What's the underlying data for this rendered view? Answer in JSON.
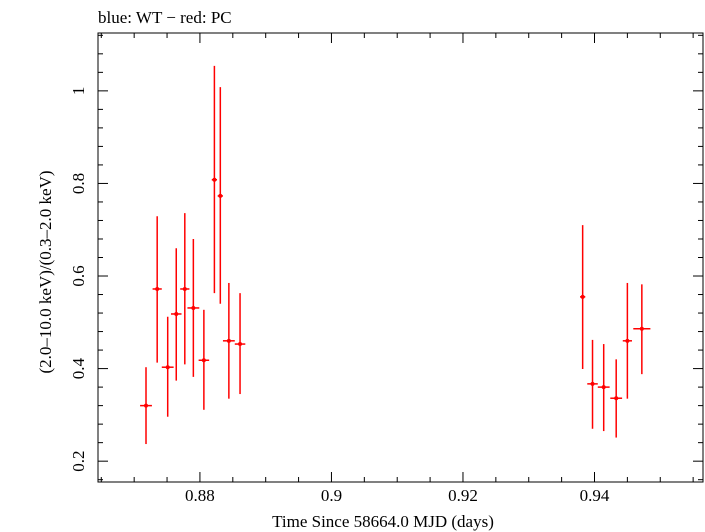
{
  "chart_data": {
    "type": "scatter",
    "title": "blue: WT − red: PC",
    "xlabel": "Time Since 58664.0 MJD (days)",
    "ylabel": "(2.0–10.0 keV)/(0.3–2.0 keV)",
    "xlim": [
      0.8645,
      0.9565
    ],
    "ylim": [
      0.155,
      1.125
    ],
    "x_ticks": [
      {
        "value": 0.88,
        "label": "0.88"
      },
      {
        "value": 0.9,
        "label": "0.9"
      },
      {
        "value": 0.92,
        "label": "0.92"
      },
      {
        "value": 0.94,
        "label": "0.94"
      }
    ],
    "y_ticks": [
      {
        "value": 0.2,
        "label": "0.2"
      },
      {
        "value": 0.4,
        "label": "0.4"
      },
      {
        "value": 0.6,
        "label": "0.6"
      },
      {
        "value": 0.8,
        "label": "0.8"
      },
      {
        "value": 1.0,
        "label": "1"
      }
    ],
    "grid": false,
    "series": [
      {
        "color": "#ff0000",
        "points": [
          {
            "x": 0.8718,
            "xerr": 0.0009,
            "y": 0.32,
            "ylo": 0.237,
            "yhi": 0.403
          },
          {
            "x": 0.8735,
            "xerr": 0.0007,
            "y": 0.572,
            "ylo": 0.413,
            "yhi": 0.729
          },
          {
            "x": 0.8751,
            "xerr": 0.0009,
            "y": 0.403,
            "ylo": 0.296,
            "yhi": 0.512
          },
          {
            "x": 0.8764,
            "xerr": 0.0008,
            "y": 0.518,
            "ylo": 0.374,
            "yhi": 0.66
          },
          {
            "x": 0.8777,
            "xerr": 0.0007,
            "y": 0.572,
            "ylo": 0.409,
            "yhi": 0.736
          },
          {
            "x": 0.879,
            "xerr": 0.0009,
            "y": 0.531,
            "ylo": 0.382,
            "yhi": 0.68
          },
          {
            "x": 0.8806,
            "xerr": 0.0008,
            "y": 0.418,
            "ylo": 0.311,
            "yhi": 0.527
          },
          {
            "x": 0.8822,
            "xerr": 0.0004,
            "y": 0.808,
            "ylo": 0.563,
            "yhi": 1.054
          },
          {
            "x": 0.8831,
            "xerr": 0.0004,
            "y": 0.773,
            "ylo": 0.54,
            "yhi": 1.008
          },
          {
            "x": 0.8844,
            "xerr": 0.0009,
            "y": 0.46,
            "ylo": 0.335,
            "yhi": 0.585
          },
          {
            "x": 0.8861,
            "xerr": 0.0008,
            "y": 0.453,
            "ylo": 0.345,
            "yhi": 0.563
          },
          {
            "x": 0.9382,
            "xerr": 0.0004,
            "y": 0.555,
            "ylo": 0.399,
            "yhi": 0.71
          },
          {
            "x": 0.9397,
            "xerr": 0.0008,
            "y": 0.367,
            "ylo": 0.27,
            "yhi": 0.462
          },
          {
            "x": 0.9414,
            "xerr": 0.0009,
            "y": 0.36,
            "ylo": 0.265,
            "yhi": 0.453
          },
          {
            "x": 0.9433,
            "xerr": 0.0009,
            "y": 0.336,
            "ylo": 0.251,
            "yhi": 0.42
          },
          {
            "x": 0.945,
            "xerr": 0.0007,
            "y": 0.46,
            "ylo": 0.335,
            "yhi": 0.585
          },
          {
            "x": 0.9472,
            "xerr": 0.0013,
            "y": 0.486,
            "ylo": 0.388,
            "yhi": 0.582
          }
        ]
      }
    ]
  }
}
